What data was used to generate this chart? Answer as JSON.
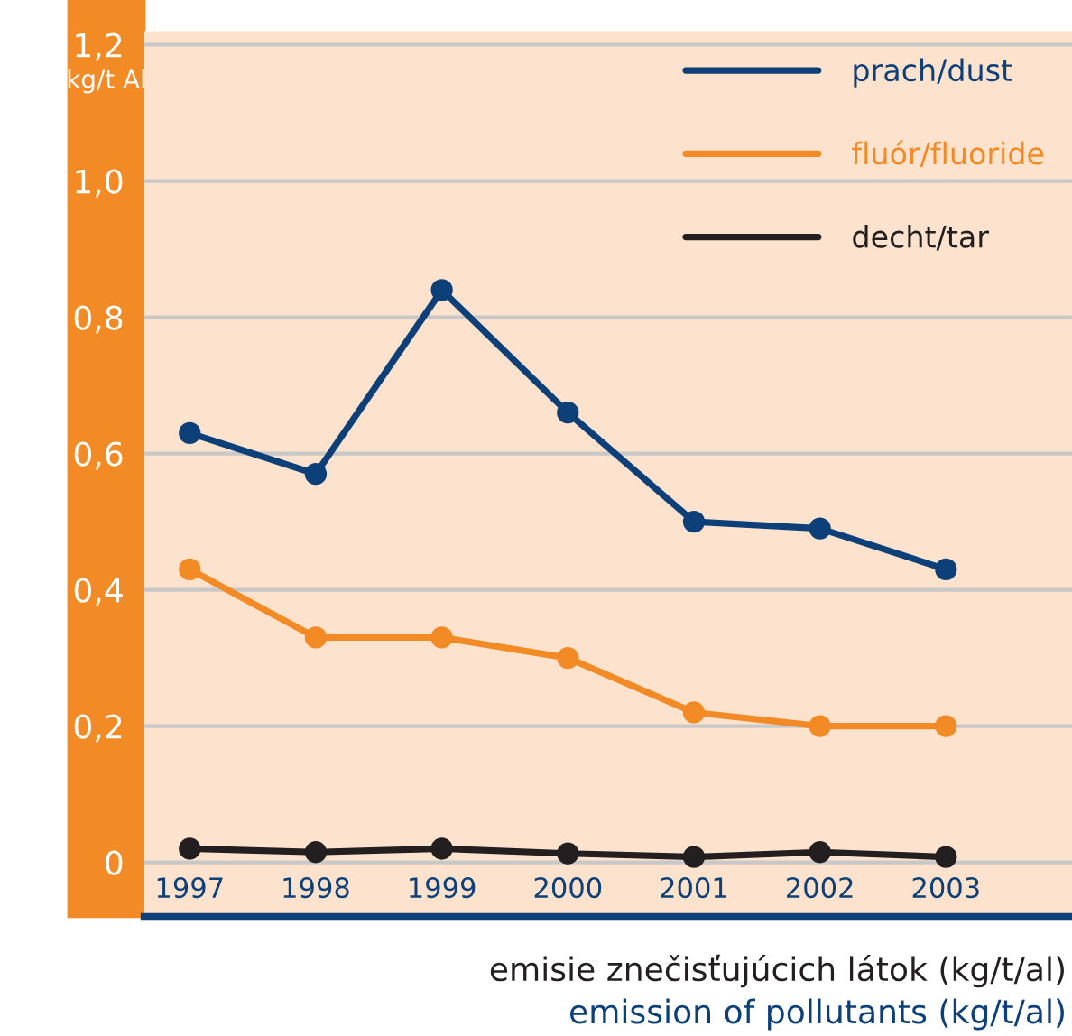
{
  "chart_data": {
    "type": "line",
    "ylabel": "kg/t Al",
    "categories": [
      "1997",
      "1998",
      "1999",
      "2000",
      "2001",
      "2002",
      "2003"
    ],
    "series": [
      {
        "name": "prach/dust",
        "color": "#0d3f78",
        "values": [
          0.63,
          0.57,
          0.84,
          0.66,
          0.5,
          0.49,
          0.43
        ]
      },
      {
        "name": "fluór/fluoride",
        "color": "#f28a25",
        "values": [
          0.43,
          0.33,
          0.33,
          0.3,
          0.22,
          0.2,
          0.2
        ]
      },
      {
        "name": "decht/tar",
        "color": "#231f20",
        "values": [
          0.02,
          0.015,
          0.02,
          0.013,
          0.008,
          0.015,
          0.008
        ]
      }
    ],
    "ylim": [
      -0.08,
      1.22
    ],
    "yticks": [
      0,
      {
        "value": 0.2,
        "label": "0,2"
      },
      {
        "value": 0.4,
        "label": "0,4"
      },
      {
        "value": 0.6,
        "label": "0,6"
      },
      {
        "value": 0.8,
        "label": "0,8"
      },
      {
        "value": 1.0,
        "label": "1,0"
      },
      {
        "value": 1.2,
        "label": "1,2"
      }
    ],
    "grid": "y",
    "legend": "top right",
    "marker": "circle",
    "line_style": "solid",
    "annotations": [
      "emisie znečisťujúcich látok (kg/t/al)",
      "emission of pollutants (kg/t/al)"
    ]
  }
}
